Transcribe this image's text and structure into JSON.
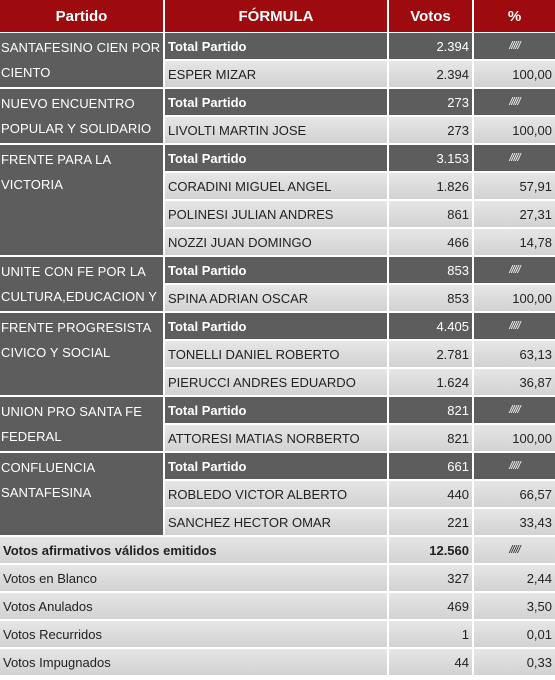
{
  "headers": {
    "partido": "Partido",
    "formula": "FÓRMULA",
    "votos": "Votos",
    "pct": "%"
  },
  "parties": [
    {
      "name": "SANTAFESINO CIEN POR CIENTO",
      "total": {
        "label": "Total Partido",
        "votos": "2.394",
        "pct": "/////"
      },
      "rows": [
        {
          "name": "ESPER MIZAR",
          "votos": "2.394",
          "pct": "100,00"
        }
      ]
    },
    {
      "name": "NUEVO ENCUENTRO POPULAR Y SOLIDARIO",
      "total": {
        "label": "Total Partido",
        "votos": "273",
        "pct": "/////"
      },
      "rows": [
        {
          "name": "LIVOLTI MARTIN JOSE",
          "votos": "273",
          "pct": "100,00"
        }
      ]
    },
    {
      "name": "FRENTE PARA LA VICTORIA",
      "total": {
        "label": "Total Partido",
        "votos": "3.153",
        "pct": "/////"
      },
      "rows": [
        {
          "name": "CORADINI MIGUEL ANGEL",
          "votos": "1.826",
          "pct": "57,91"
        },
        {
          "name": "POLINESI JULIAN ANDRES",
          "votos": "861",
          "pct": "27,31"
        },
        {
          "name": "NOZZI JUAN DOMINGO",
          "votos": "466",
          "pct": "14,78"
        }
      ]
    },
    {
      "name": "UNITE CON FE POR LA CULTURA,EDUCACION Y",
      "total": {
        "label": "Total Partido",
        "votos": "853",
        "pct": "/////"
      },
      "rows": [
        {
          "name": "SPINA ADRIAN OSCAR",
          "votos": "853",
          "pct": "100,00"
        }
      ]
    },
    {
      "name": "FRENTE PROGRESISTA CIVICO Y SOCIAL",
      "total": {
        "label": "Total Partido",
        "votos": "4.405",
        "pct": "/////"
      },
      "rows": [
        {
          "name": "TONELLI DANIEL ROBERTO",
          "votos": "2.781",
          "pct": "63,13"
        },
        {
          "name": "PIERUCCI ANDRES EDUARDO",
          "votos": "1.624",
          "pct": "36,87"
        }
      ]
    },
    {
      "name": "UNION PRO SANTA FE FEDERAL",
      "total": {
        "label": "Total Partido",
        "votos": "821",
        "pct": "/////"
      },
      "rows": [
        {
          "name": "ATTORESI MATIAS NORBERTO",
          "votos": "821",
          "pct": "100,00"
        }
      ]
    },
    {
      "name": "CONFLUENCIA SANTAFESINA",
      "total": {
        "label": "Total Partido",
        "votos": "661",
        "pct": "/////"
      },
      "rows": [
        {
          "name": "ROBLEDO VICTOR ALBERTO",
          "votos": "440",
          "pct": "66,57"
        },
        {
          "name": "SANCHEZ HECTOR OMAR",
          "votos": "221",
          "pct": "33,43"
        }
      ]
    }
  ],
  "summary": [
    {
      "label": "Votos afirmativos válidos emitidos",
      "votos": "12.560",
      "pct": "/////",
      "bold": true
    },
    {
      "label": "Votos en Blanco",
      "votos": "327",
      "pct": "2,44"
    },
    {
      "label": "Votos Anulados",
      "votos": "469",
      "pct": "3,50"
    },
    {
      "label": "Votos Recurridos",
      "votos": "1",
      "pct": "0,01"
    },
    {
      "label": "Votos Impugnados",
      "votos": "44",
      "pct": "0,33"
    }
  ],
  "colors": {
    "header": "#9e0b0f",
    "dark": "#5d5d5d",
    "light": "#dcdcdc"
  }
}
